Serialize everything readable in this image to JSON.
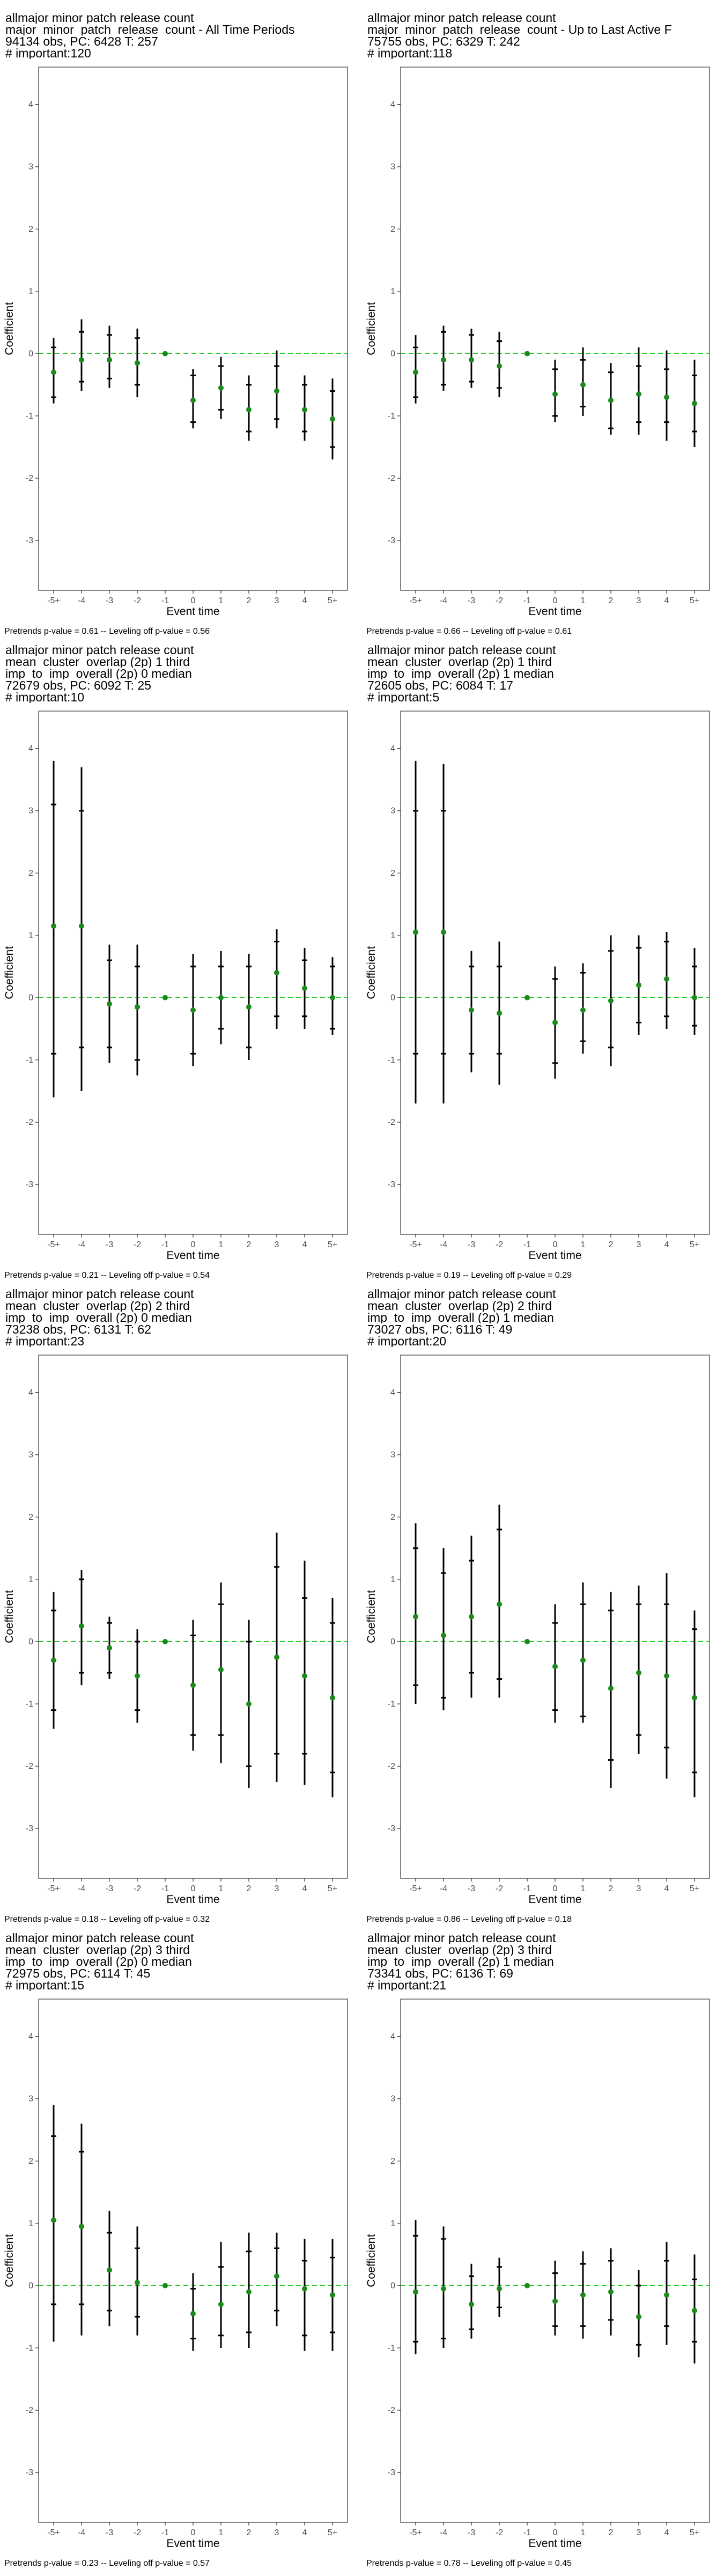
{
  "axis": {
    "xlabel": "Event time",
    "ylabel": "Coefficient",
    "x_ticks": [
      "-5+",
      "-4",
      "-3",
      "-2",
      "-1",
      "0",
      "1",
      "2",
      "3",
      "4",
      "5+"
    ],
    "y_ticks": [
      -3,
      -2,
      -1,
      0,
      1,
      2,
      3,
      4
    ],
    "ylim": [
      -3.8,
      4.6
    ]
  },
  "colors": {
    "point": "#1a8a1a",
    "zero_line": "#22cc22",
    "bars": "#000000",
    "panel_border": "#333333"
  },
  "panels": [
    {
      "title_lines": [
        " allmajor minor patch release count",
        "major_minor_patch_release_count - All Time Periods",
        "94134 obs, PC: 6428 T: 257",
        "# important:120"
      ],
      "footer": "Pretrends p-value = 0.61 -- Leveling off p-value = 0.56"
    },
    {
      "title_lines": [
        " allmajor minor patch release count",
        "major_minor_patch_release_count - Up to Last Active F",
        "75755 obs, PC: 6329 T: 242",
        "# important:118"
      ],
      "footer": "Pretrends p-value = 0.66 -- Leveling off p-value = 0.61"
    },
    {
      "title_lines": [
        " allmajor minor patch release count",
        "mean_cluster_overlap (2p) 1 third",
        "imp_to_imp_overall (2p) 0 median",
        "72679 obs, PC: 6092 T: 25",
        "# important:10"
      ],
      "footer": "Pretrends p-value = 0.21 -- Leveling off p-value = 0.54"
    },
    {
      "title_lines": [
        " allmajor minor patch release count",
        "mean_cluster_overlap (2p) 1 third",
        "imp_to_imp_overall (2p) 1 median",
        "72605 obs, PC: 6084 T: 17",
        "# important:5"
      ],
      "footer": "Pretrends p-value = 0.19 -- Leveling off p-value = 0.29"
    },
    {
      "title_lines": [
        " allmajor minor patch release count",
        "mean_cluster_overlap (2p) 2 third",
        "imp_to_imp_overall (2p) 0 median",
        "73238 obs, PC: 6131 T: 62",
        "# important:23"
      ],
      "footer": "Pretrends p-value = 0.18 -- Leveling off p-value = 0.32"
    },
    {
      "title_lines": [
        " allmajor minor patch release count",
        "mean_cluster_overlap (2p) 2 third",
        "imp_to_imp_overall (2p) 1 median",
        "73027 obs, PC: 6116 T: 49",
        "# important:20"
      ],
      "footer": "Pretrends p-value = 0.86 -- Leveling off p-value = 0.18"
    },
    {
      "title_lines": [
        " allmajor minor patch release count",
        "mean_cluster_overlap (2p) 3 third",
        "imp_to_imp_overall (2p) 0 median",
        "72975 obs, PC: 6114 T: 45",
        "# important:15"
      ],
      "footer": "Pretrends p-value = 0.23 -- Leveling off p-value = 0.57"
    },
    {
      "title_lines": [
        " allmajor minor patch release count",
        "mean_cluster_overlap (2p) 3 third",
        "imp_to_imp_overall (2p) 1 median",
        "73341 obs, PC: 6136 T: 69",
        "# important:21"
      ],
      "footer": "Pretrends p-value = 0.78 -- Leveling off p-value = 0.45"
    }
  ],
  "chart_data": [
    {
      "type": "scatter",
      "x": [
        "-5+",
        "-4",
        "-3",
        "-2",
        "-1",
        "0",
        "1",
        "2",
        "3",
        "4",
        "5+"
      ],
      "estimate": [
        -0.3,
        -0.1,
        -0.1,
        -0.15,
        0.0,
        -0.75,
        -0.55,
        -0.9,
        -0.6,
        -0.9,
        -1.05
      ],
      "ci_inner": [
        [
          -0.7,
          0.1
        ],
        [
          -0.45,
          0.35
        ],
        [
          -0.4,
          0.3
        ],
        [
          -0.5,
          0.25
        ],
        [
          0,
          0
        ],
        [
          -1.1,
          -0.35
        ],
        [
          -0.9,
          -0.2
        ],
        [
          -1.25,
          -0.5
        ],
        [
          -1.05,
          -0.2
        ],
        [
          -1.25,
          -0.5
        ],
        [
          -1.5,
          -0.6
        ]
      ],
      "ci_outer": [
        [
          -0.8,
          0.25
        ],
        [
          -0.6,
          0.55
        ],
        [
          -0.55,
          0.45
        ],
        [
          -0.7,
          0.4
        ],
        [
          0,
          0
        ],
        [
          -1.2,
          -0.25
        ],
        [
          -1.05,
          -0.05
        ],
        [
          -1.4,
          -0.35
        ],
        [
          -1.2,
          0.05
        ],
        [
          -1.4,
          -0.35
        ],
        [
          -1.7,
          -0.4
        ]
      ],
      "ylim": [
        -3.8,
        4.6
      ],
      "xlabel": "Event time",
      "ylabel": "Coefficient"
    },
    {
      "type": "scatter",
      "x": [
        "-5+",
        "-4",
        "-3",
        "-2",
        "-1",
        "0",
        "1",
        "2",
        "3",
        "4",
        "5+"
      ],
      "estimate": [
        -0.3,
        -0.1,
        -0.1,
        -0.2,
        0.0,
        -0.65,
        -0.5,
        -0.75,
        -0.65,
        -0.7,
        -0.8
      ],
      "ci_inner": [
        [
          -0.7,
          0.1
        ],
        [
          -0.5,
          0.35
        ],
        [
          -0.45,
          0.3
        ],
        [
          -0.55,
          0.2
        ],
        [
          0,
          0
        ],
        [
          -1.0,
          -0.25
        ],
        [
          -0.85,
          -0.1
        ],
        [
          -1.2,
          -0.3
        ],
        [
          -1.1,
          -0.2
        ],
        [
          -1.1,
          -0.25
        ],
        [
          -1.25,
          -0.35
        ]
      ],
      "ci_outer": [
        [
          -0.8,
          0.3
        ],
        [
          -0.6,
          0.45
        ],
        [
          -0.55,
          0.4
        ],
        [
          -0.7,
          0.35
        ],
        [
          0,
          0
        ],
        [
          -1.1,
          -0.1
        ],
        [
          -1.0,
          0.1
        ],
        [
          -1.3,
          -0.15
        ],
        [
          -1.3,
          0.1
        ],
        [
          -1.4,
          0.05
        ],
        [
          -1.5,
          -0.1
        ]
      ],
      "ylim": [
        -3.8,
        4.6
      ],
      "xlabel": "Event time",
      "ylabel": "Coefficient"
    },
    {
      "type": "scatter",
      "x": [
        "-5+",
        "-4",
        "-3",
        "-2",
        "-1",
        "0",
        "1",
        "2",
        "3",
        "4",
        "5+"
      ],
      "estimate": [
        1.15,
        1.15,
        -0.1,
        -0.15,
        0.0,
        -0.2,
        0.0,
        -0.15,
        0.4,
        0.15,
        0.0
      ],
      "ci_inner": [
        [
          -0.9,
          3.1
        ],
        [
          -0.8,
          3.0
        ],
        [
          -0.8,
          0.6
        ],
        [
          -1.0,
          0.5
        ],
        [
          0,
          0
        ],
        [
          -0.9,
          0.5
        ],
        [
          -0.5,
          0.5
        ],
        [
          -0.8,
          0.5
        ],
        [
          -0.3,
          0.9
        ],
        [
          -0.3,
          0.6
        ],
        [
          -0.5,
          0.5
        ]
      ],
      "ci_outer": [
        [
          -1.6,
          3.8
        ],
        [
          -1.5,
          3.7
        ],
        [
          -1.05,
          0.85
        ],
        [
          -1.25,
          0.85
        ],
        [
          0,
          0
        ],
        [
          -1.1,
          0.7
        ],
        [
          -0.75,
          0.75
        ],
        [
          -1.0,
          0.7
        ],
        [
          -0.5,
          1.1
        ],
        [
          -0.5,
          0.8
        ],
        [
          -0.6,
          0.65
        ]
      ],
      "ylim": [
        -3.8,
        4.6
      ],
      "xlabel": "Event time",
      "ylabel": "Coefficient"
    },
    {
      "type": "scatter",
      "x": [
        "-5+",
        "-4",
        "-3",
        "-2",
        "-1",
        "0",
        "1",
        "2",
        "3",
        "4",
        "5+"
      ],
      "estimate": [
        1.05,
        1.05,
        -0.2,
        -0.25,
        0.0,
        -0.4,
        -0.2,
        -0.05,
        0.2,
        0.3,
        0.0
      ],
      "ci_inner": [
        [
          -0.9,
          3.0
        ],
        [
          -0.9,
          3.0
        ],
        [
          -0.9,
          0.5
        ],
        [
          -0.9,
          0.5
        ],
        [
          0,
          0
        ],
        [
          -1.05,
          0.3
        ],
        [
          -0.7,
          0.4
        ],
        [
          -0.8,
          0.75
        ],
        [
          -0.4,
          0.8
        ],
        [
          -0.3,
          0.9
        ],
        [
          -0.45,
          0.5
        ]
      ],
      "ci_outer": [
        [
          -1.7,
          3.8
        ],
        [
          -1.7,
          3.75
        ],
        [
          -1.2,
          0.75
        ],
        [
          -1.4,
          0.9
        ],
        [
          0,
          0
        ],
        [
          -1.3,
          0.5
        ],
        [
          -0.9,
          0.55
        ],
        [
          -1.1,
          1.0
        ],
        [
          -0.6,
          1.0
        ],
        [
          -0.5,
          1.05
        ],
        [
          -0.6,
          0.8
        ]
      ],
      "ylim": [
        -3.8,
        4.6
      ],
      "xlabel": "Event time",
      "ylabel": "Coefficient"
    },
    {
      "type": "scatter",
      "x": [
        "-5+",
        "-4",
        "-3",
        "-2",
        "-1",
        "0",
        "1",
        "2",
        "3",
        "4",
        "5+"
      ],
      "estimate": [
        -0.3,
        0.25,
        -0.1,
        -0.55,
        0.0,
        -0.7,
        -0.45,
        -1.0,
        -0.25,
        -0.55,
        -0.9
      ],
      "ci_inner": [
        [
          -1.1,
          0.5
        ],
        [
          -0.5,
          1.0
        ],
        [
          -0.5,
          0.3
        ],
        [
          -1.1,
          0.0
        ],
        [
          0,
          0
        ],
        [
          -1.5,
          0.1
        ],
        [
          -1.5,
          0.6
        ],
        [
          -2.0,
          0.0
        ],
        [
          -1.8,
          1.2
        ],
        [
          -1.8,
          0.7
        ],
        [
          -2.1,
          0.3
        ]
      ],
      "ci_outer": [
        [
          -1.4,
          0.8
        ],
        [
          -0.7,
          1.15
        ],
        [
          -0.6,
          0.4
        ],
        [
          -1.3,
          0.2
        ],
        [
          0,
          0
        ],
        [
          -1.75,
          0.35
        ],
        [
          -1.95,
          0.95
        ],
        [
          -2.35,
          0.35
        ],
        [
          -2.25,
          1.75
        ],
        [
          -2.3,
          1.3
        ],
        [
          -2.5,
          0.7
        ]
      ],
      "ylim": [
        -3.8,
        4.6
      ],
      "xlabel": "Event time",
      "ylabel": "Coefficient"
    },
    {
      "type": "scatter",
      "x": [
        "-5+",
        "-4",
        "-3",
        "-2",
        "-1",
        "0",
        "1",
        "2",
        "3",
        "4",
        "5+"
      ],
      "estimate": [
        0.4,
        0.1,
        0.4,
        0.6,
        0.0,
        -0.4,
        -0.3,
        -0.75,
        -0.5,
        -0.55,
        -0.9
      ],
      "ci_inner": [
        [
          -0.7,
          1.5
        ],
        [
          -0.9,
          1.1
        ],
        [
          -0.5,
          1.3
        ],
        [
          -0.6,
          1.8
        ],
        [
          0,
          0
        ],
        [
          -1.1,
          0.3
        ],
        [
          -1.2,
          0.6
        ],
        [
          -1.9,
          0.5
        ],
        [
          -1.5,
          0.6
        ],
        [
          -1.7,
          0.6
        ],
        [
          -2.1,
          0.2
        ]
      ],
      "ci_outer": [
        [
          -1.0,
          1.9
        ],
        [
          -1.1,
          1.5
        ],
        [
          -0.9,
          1.7
        ],
        [
          -0.9,
          2.2
        ],
        [
          0,
          0
        ],
        [
          -1.3,
          0.6
        ],
        [
          -1.3,
          0.95
        ],
        [
          -2.35,
          0.8
        ],
        [
          -1.8,
          0.9
        ],
        [
          -2.2,
          1.1
        ],
        [
          -2.5,
          0.5
        ]
      ],
      "ylim": [
        -3.8,
        4.6
      ],
      "xlabel": "Event time",
      "ylabel": "Coefficient"
    },
    {
      "type": "scatter",
      "x": [
        "-5+",
        "-4",
        "-3",
        "-2",
        "-1",
        "0",
        "1",
        "2",
        "3",
        "4",
        "5+"
      ],
      "estimate": [
        1.05,
        0.95,
        0.25,
        0.05,
        0.0,
        -0.45,
        -0.3,
        -0.1,
        0.15,
        -0.05,
        -0.15
      ],
      "ci_inner": [
        [
          -0.3,
          2.4
        ],
        [
          -0.3,
          2.15
        ],
        [
          -0.4,
          0.85
        ],
        [
          -0.5,
          0.6
        ],
        [
          0,
          0
        ],
        [
          -0.85,
          -0.05
        ],
        [
          -0.8,
          0.3
        ],
        [
          -0.75,
          0.55
        ],
        [
          -0.4,
          0.6
        ],
        [
          -0.8,
          0.4
        ],
        [
          -0.75,
          0.45
        ]
      ],
      "ci_outer": [
        [
          -0.9,
          2.9
        ],
        [
          -0.8,
          2.6
        ],
        [
          -0.65,
          1.2
        ],
        [
          -0.8,
          0.95
        ],
        [
          0,
          0
        ],
        [
          -1.05,
          0.2
        ],
        [
          -1.0,
          0.7
        ],
        [
          -1.0,
          0.85
        ],
        [
          -0.65,
          0.85
        ],
        [
          -1.05,
          0.75
        ],
        [
          -1.05,
          0.75
        ]
      ],
      "ylim": [
        -3.8,
        4.6
      ],
      "xlabel": "Event time",
      "ylabel": "Coefficient"
    },
    {
      "type": "scatter",
      "x": [
        "-5+",
        "-4",
        "-3",
        "-2",
        "-1",
        "0",
        "1",
        "2",
        "3",
        "4",
        "5+"
      ],
      "estimate": [
        -0.1,
        -0.05,
        -0.3,
        -0.05,
        0.0,
        -0.25,
        -0.15,
        -0.1,
        -0.5,
        -0.15,
        -0.4
      ],
      "ci_inner": [
        [
          -0.9,
          0.8
        ],
        [
          -0.85,
          0.75
        ],
        [
          -0.7,
          0.15
        ],
        [
          -0.35,
          0.3
        ],
        [
          0,
          0
        ],
        [
          -0.65,
          0.2
        ],
        [
          -0.65,
          0.35
        ],
        [
          -0.55,
          0.4
        ],
        [
          -0.95,
          0.0
        ],
        [
          -0.65,
          0.4
        ],
        [
          -0.9,
          0.1
        ]
      ],
      "ci_outer": [
        [
          -1.1,
          1.05
        ],
        [
          -1.0,
          0.95
        ],
        [
          -0.85,
          0.35
        ],
        [
          -0.5,
          0.45
        ],
        [
          0,
          0
        ],
        [
          -0.8,
          0.4
        ],
        [
          -0.85,
          0.55
        ],
        [
          -0.8,
          0.6
        ],
        [
          -1.15,
          0.25
        ],
        [
          -0.95,
          0.7
        ],
        [
          -1.25,
          0.5
        ]
      ],
      "ylim": [
        -3.8,
        4.6
      ],
      "xlabel": "Event time",
      "ylabel": "Coefficient"
    }
  ]
}
